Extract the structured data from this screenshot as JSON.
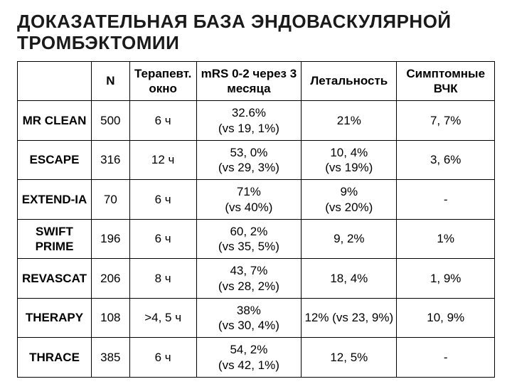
{
  "title": "ДОКАЗАТЕЛЬНАЯ БАЗА ЭНДОВАСКУЛЯРНОЙ ТРОМБЭКТОМИИ",
  "table": {
    "columns": [
      "",
      "N",
      "Терапевт. окно",
      "mRS 0-2 через 3 месяца",
      "Летальность",
      "Симптомные ВЧК"
    ],
    "rows": [
      {
        "trial": "MR CLEAN",
        "n": "500",
        "window": "6 ч",
        "mrs": "32.6%\n(vs 19, 1%)",
        "lethality": "21%",
        "ich": "7, 7%"
      },
      {
        "trial": "ESCAPE",
        "n": "316",
        "window": "12 ч",
        "mrs": "53, 0%\n(vs 29, 3%)",
        "lethality": "10, 4%\n(vs 19%)",
        "ich": "3, 6%"
      },
      {
        "trial": "EXTEND-IA",
        "n": "70",
        "window": "6 ч",
        "mrs": "71%\n(vs 40%)",
        "lethality": "9%\n(vs 20%)",
        "ich": "-"
      },
      {
        "trial": "SWIFT PRIME",
        "n": "196",
        "window": "6 ч",
        "mrs": "60, 2%\n(vs 35, 5%)",
        "lethality": "9, 2%",
        "ich": "1%"
      },
      {
        "trial": "REVASCAT",
        "n": "206",
        "window": "8 ч",
        "mrs": "43, 7%\n(vs 28, 2%)",
        "lethality": "18, 4%",
        "ich": "1, 9%"
      },
      {
        "trial": "THERAPY",
        "n": "108",
        "window": ">4, 5 ч",
        "mrs": "38%\n(vs 30, 4%)",
        "lethality": "12% (vs 23, 9%)",
        "ich": "10, 9%"
      },
      {
        "trial": "THRACE",
        "n": "385",
        "window": "6 ч",
        "mrs": "54, 2%\n(vs 42, 1%)",
        "lethality": "12, 5%",
        "ich": "-"
      }
    ]
  }
}
